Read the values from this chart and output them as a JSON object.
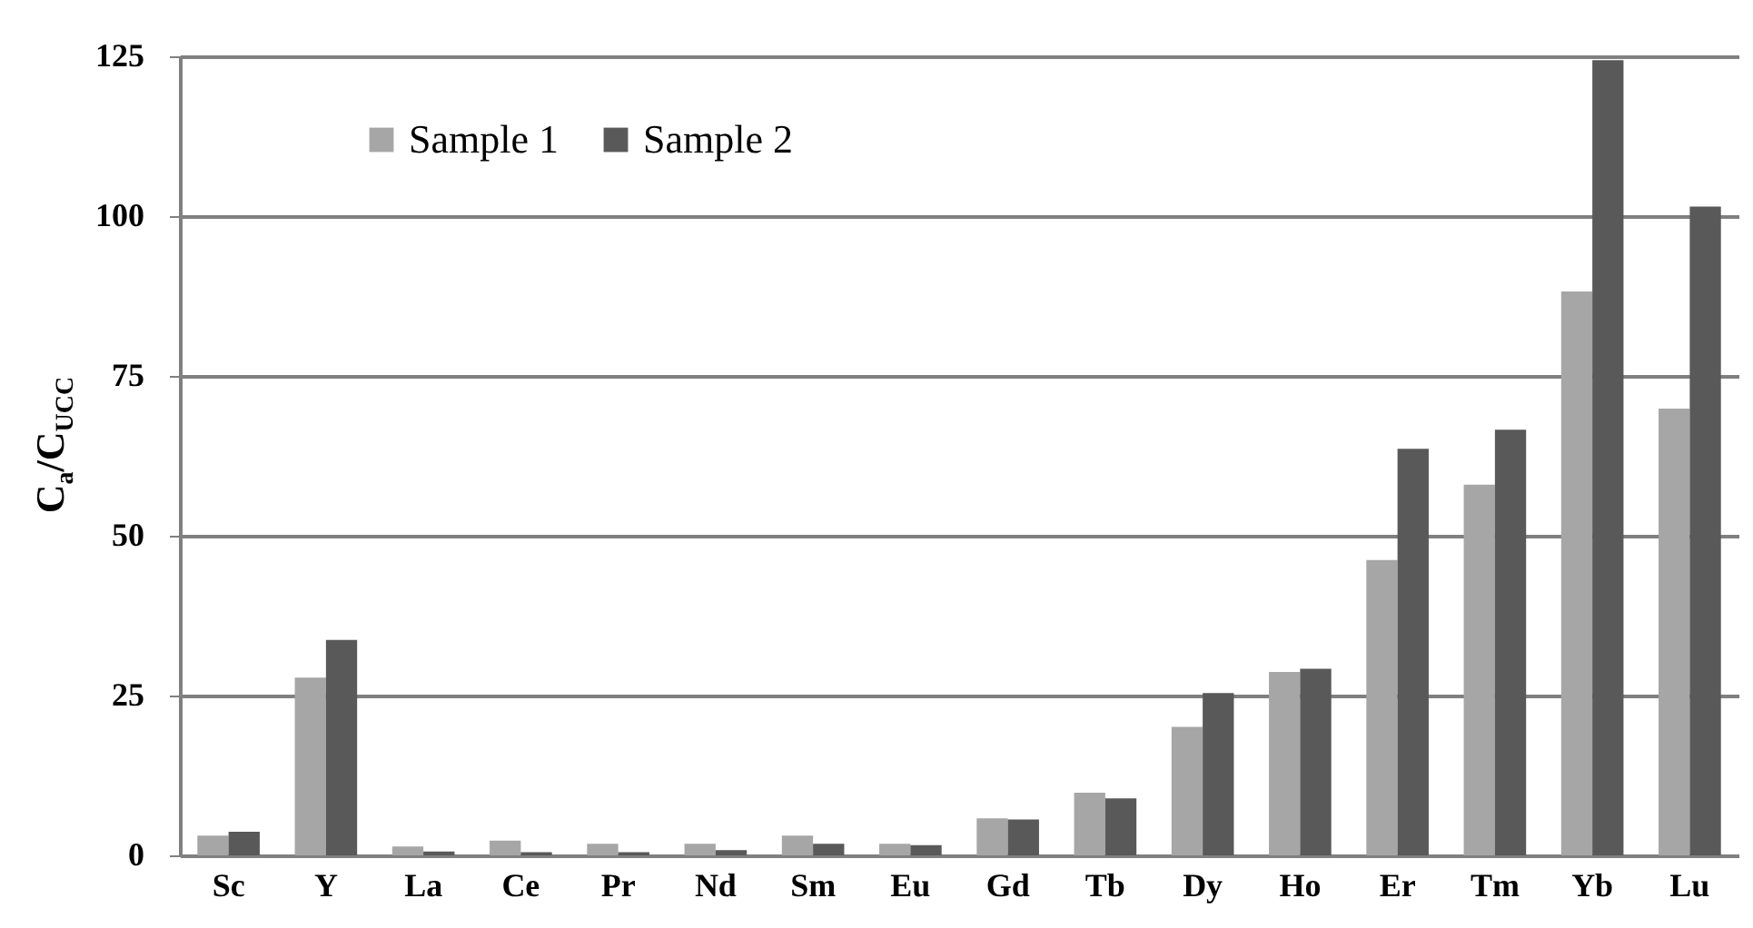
{
  "chart_data": {
    "type": "bar",
    "ylabel": "C$_{a}$/C$_{UCC}$",
    "categories": [
      "Sc",
      "Y",
      "La",
      "Ce",
      "Pr",
      "Nd",
      "Sm",
      "Eu",
      "Gd",
      "Tb",
      "Dy",
      "Ho",
      "Er",
      "Tm",
      "Yb",
      "Lu"
    ],
    "series": [
      {
        "name": "Sample 1",
        "color": "#a6a6a6",
        "values": [
          3.1,
          27.8,
          1.4,
          2.3,
          1.8,
          1.8,
          3.1,
          1.8,
          5.8,
          9.8,
          20.1,
          28.7,
          46.2,
          58.0,
          88.2,
          69.9
        ]
      },
      {
        "name": "Sample 2",
        "color": "#595959",
        "values": [
          3.7,
          33.7,
          0.6,
          0.5,
          0.5,
          0.8,
          1.8,
          1.6,
          5.6,
          8.9,
          25.4,
          29.2,
          63.6,
          66.6,
          124.4,
          101.5
        ]
      }
    ],
    "ylim": [
      0,
      125
    ],
    "yticks": [
      0,
      25,
      50,
      75,
      100,
      125
    ],
    "grid": "y",
    "legend": "top left"
  }
}
